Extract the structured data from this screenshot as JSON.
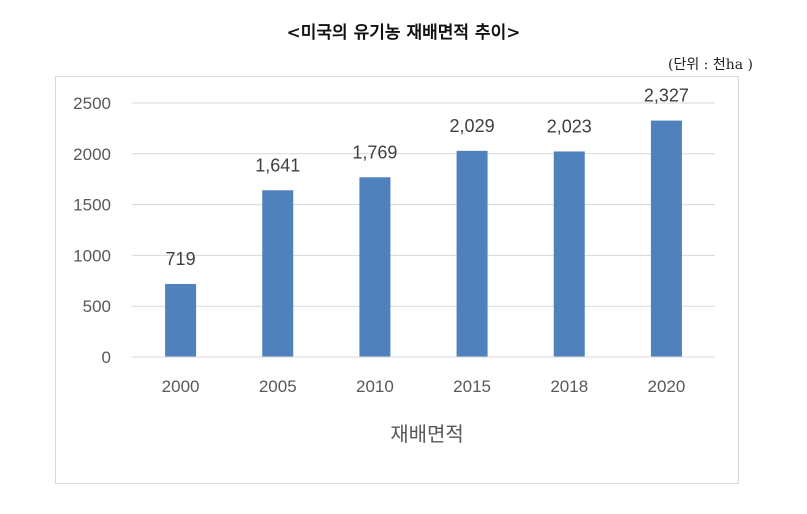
{
  "chart_data": {
    "type": "bar",
    "title": "<미국의 유기농 재배면적 추이>",
    "unit_note": "(단위 :  천ha )",
    "categories": [
      "2000",
      "2005",
      "2010",
      "2015",
      "2018",
      "2020"
    ],
    "values": [
      719,
      1641,
      1769,
      2029,
      2023,
      2327
    ],
    "value_labels": [
      "719",
      "1,641",
      "1,769",
      "2,029",
      "2,023",
      "2,327"
    ],
    "xlabel": "재배면적",
    "ylabel": "",
    "ylim": [
      0,
      2500
    ],
    "yticks": [
      "0",
      "500",
      "1000",
      "1500",
      "2000",
      "2500"
    ],
    "grid": true,
    "bar_color": "#4f81bd"
  }
}
